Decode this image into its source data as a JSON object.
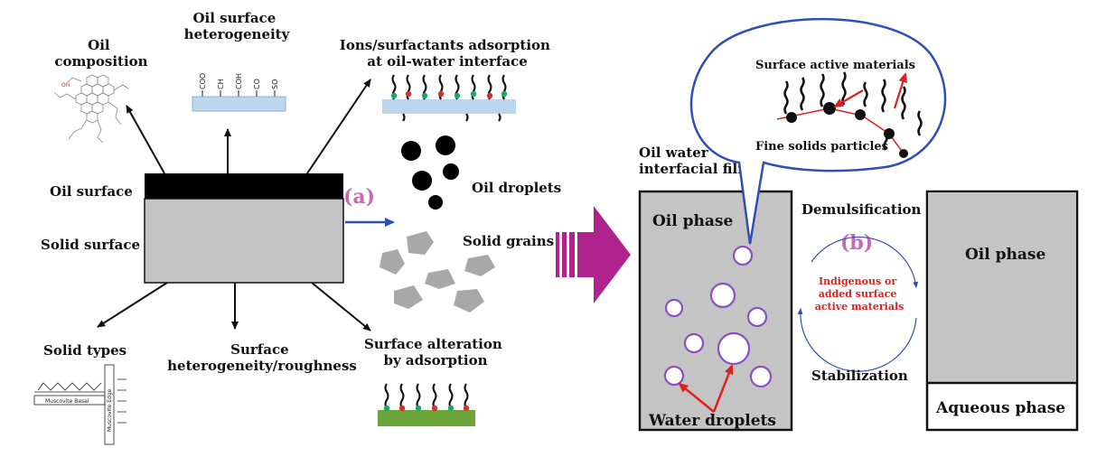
{
  "panel_a": {
    "letter": "(a)",
    "oil_composition": [
      "Oil",
      "composition"
    ],
    "oil_surface_heterogeneity": [
      "Oil surface",
      "heterogeneity"
    ],
    "ions_adsorption": [
      "Ions/surfactants adsorption",
      "at oil-water interface"
    ],
    "functional_groups": [
      "COO",
      "CH",
      "COH",
      "CO",
      "SO"
    ],
    "oil_surface": "Oil surface",
    "solid_surface": "Solid surface",
    "oil_droplets": "Oil droplets",
    "solid_grains": "Solid grains",
    "solid_types": "Solid types",
    "surface_heterogeneity_roughness": [
      "Surface",
      "heterogeneity/roughness"
    ],
    "surface_alteration": [
      "Surface alteration",
      "by adsorption"
    ],
    "muscovite_basal": "Muscovite Basal",
    "muscovite_edge": "Muscovite Edge"
  },
  "panel_b": {
    "letter": "(b)",
    "interfacial_film": [
      "Oil water",
      "interfacial film"
    ],
    "surface_active_materials": "Surface active materials",
    "fine_solids_particles": "Fine solids particles",
    "oil_phase_left": "Oil phase",
    "water_droplets": "Water droplets",
    "demulsification": "Demulsification",
    "stabilization": "Stabilization",
    "indigenous": [
      "Indigenous or",
      "added surface",
      "active materials"
    ],
    "oil_phase_right": "Oil phase",
    "aqueous_phase": "Aqueous phase"
  },
  "colors": {
    "magenta": "#b0238f",
    "pink_letter": "#c76bb5",
    "blue": "#2f4fb5",
    "red": "#e02020",
    "gray_box": "#c4c4c4",
    "green_bead": "#1aa86a",
    "droplet_edge": "#8b4fc0"
  }
}
